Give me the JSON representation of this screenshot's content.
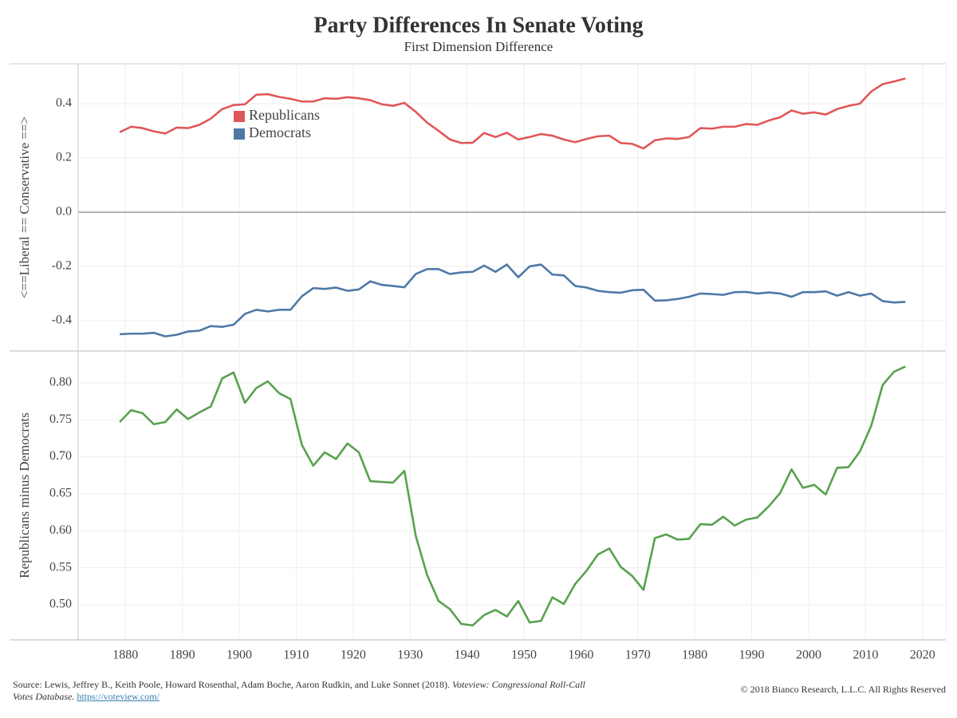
{
  "title": "Party Differences In Senate Voting",
  "subtitle": "First Dimension Difference",
  "chart_data": [
    {
      "type": "line",
      "ylabel": "<==Liberal == Conservative ==>",
      "x": [
        1879,
        1881,
        1883,
        1885,
        1887,
        1889,
        1891,
        1893,
        1895,
        1897,
        1899,
        1901,
        1903,
        1905,
        1907,
        1909,
        1911,
        1913,
        1915,
        1917,
        1919,
        1921,
        1923,
        1925,
        1927,
        1929,
        1931,
        1933,
        1935,
        1937,
        1939,
        1941,
        1943,
        1945,
        1947,
        1949,
        1951,
        1953,
        1955,
        1957,
        1959,
        1961,
        1963,
        1965,
        1967,
        1969,
        1971,
        1973,
        1975,
        1977,
        1979,
        1981,
        1983,
        1985,
        1987,
        1989,
        1991,
        1993,
        1995,
        1997,
        1999,
        2001,
        2003,
        2005,
        2007,
        2009,
        2011,
        2013,
        2015,
        2017
      ],
      "series": [
        {
          "name": "Republicans",
          "color": "#e05759",
          "values": [
            0.295,
            0.315,
            0.31,
            0.298,
            0.29,
            0.312,
            0.31,
            0.322,
            0.345,
            0.38,
            0.395,
            0.398,
            0.433,
            0.435,
            0.425,
            0.418,
            0.408,
            0.408,
            0.42,
            0.418,
            0.424,
            0.42,
            0.413,
            0.398,
            0.392,
            0.403,
            0.37,
            0.33,
            0.3,
            0.268,
            0.255,
            0.256,
            0.292,
            0.277,
            0.293,
            0.268,
            0.277,
            0.288,
            0.282,
            0.268,
            0.258,
            0.27,
            0.28,
            0.282,
            0.255,
            0.252,
            0.235,
            0.265,
            0.272,
            0.27,
            0.277,
            0.31,
            0.308,
            0.315,
            0.315,
            0.325,
            0.322,
            0.338,
            0.35,
            0.375,
            0.363,
            0.368,
            0.36,
            0.38,
            0.392,
            0.4,
            0.445,
            0.472,
            0.482,
            0.493
          ]
        },
        {
          "name": "Democrats",
          "color": "#4e79a7",
          "values": [
            -0.45,
            -0.448,
            -0.448,
            -0.445,
            -0.458,
            -0.452,
            -0.44,
            -0.437,
            -0.42,
            -0.423,
            -0.415,
            -0.375,
            -0.36,
            -0.366,
            -0.36,
            -0.36,
            -0.31,
            -0.28,
            -0.283,
            -0.278,
            -0.29,
            -0.285,
            -0.255,
            -0.268,
            -0.272,
            -0.277,
            -0.228,
            -0.21,
            -0.21,
            -0.228,
            -0.222,
            -0.22,
            -0.197,
            -0.22,
            -0.193,
            -0.24,
            -0.2,
            -0.193,
            -0.23,
            -0.233,
            -0.272,
            -0.278,
            -0.29,
            -0.295,
            -0.297,
            -0.288,
            -0.286,
            -0.326,
            -0.325,
            -0.32,
            -0.312,
            -0.3,
            -0.302,
            -0.305,
            -0.295,
            -0.294,
            -0.3,
            -0.296,
            -0.3,
            -0.312,
            -0.295,
            -0.295,
            -0.292,
            -0.308,
            -0.295,
            -0.308,
            -0.3,
            -0.328,
            -0.333,
            -0.331
          ]
        }
      ],
      "xlim": [
        1871.7,
        2024.1
      ],
      "ylim": [
        -0.512,
        0.547
      ],
      "yticks": [
        -0.4,
        -0.2,
        {
          "value": 0,
          "label": "0.0"
        },
        0.2,
        0.4
      ],
      "grid": true,
      "legend": "upper-left"
    },
    {
      "type": "line",
      "ylabel": "Republicans minus Democrats",
      "x": [
        1879,
        1881,
        1883,
        1885,
        1887,
        1889,
        1891,
        1893,
        1895,
        1897,
        1899,
        1901,
        1903,
        1905,
        1907,
        1909,
        1911,
        1913,
        1915,
        1917,
        1919,
        1921,
        1923,
        1925,
        1927,
        1929,
        1931,
        1933,
        1935,
        1937,
        1939,
        1941,
        1943,
        1945,
        1947,
        1949,
        1951,
        1953,
        1955,
        1957,
        1959,
        1961,
        1963,
        1965,
        1967,
        1969,
        1971,
        1973,
        1975,
        1977,
        1979,
        1981,
        1983,
        1985,
        1987,
        1989,
        1991,
        1993,
        1995,
        1997,
        1999,
        2001,
        2003,
        2005,
        2007,
        2009,
        2011,
        2013,
        2015,
        2017
      ],
      "series": [
        {
          "color": "#59a14f",
          "values": [
            0.747,
            0.763,
            0.759,
            0.744,
            0.747,
            0.764,
            0.751,
            0.76,
            0.768,
            0.806,
            0.814,
            0.773,
            0.793,
            0.802,
            0.786,
            0.778,
            0.716,
            0.688,
            0.706,
            0.697,
            0.718,
            0.706,
            0.667,
            0.666,
            0.665,
            0.681,
            0.593,
            0.54,
            0.505,
            0.494,
            0.474,
            0.472,
            0.486,
            0.493,
            0.484,
            0.505,
            0.476,
            0.478,
            0.51,
            0.501,
            0.528,
            0.546,
            0.568,
            0.576,
            0.551,
            0.539,
            0.52,
            0.59,
            0.595,
            0.588,
            0.589,
            0.609,
            0.608,
            0.619,
            0.607,
            0.615,
            0.618,
            0.633,
            0.651,
            0.683,
            0.658,
            0.662,
            0.649,
            0.685,
            0.686,
            0.707,
            0.742,
            0.797,
            0.815,
            0.822
          ]
        }
      ],
      "xlim": [
        1871.7,
        2024.1
      ],
      "ylim": [
        0.4525,
        0.843
      ],
      "xticks": [
        1880,
        1890,
        1900,
        1910,
        1920,
        1930,
        1940,
        1950,
        1960,
        1970,
        1980,
        1990,
        2000,
        2010,
        2020
      ],
      "yticks": [
        {
          "value": 0.5,
          "label": "0.50"
        },
        0.55,
        {
          "value": 0.6,
          "label": "0.60"
        },
        0.65,
        {
          "value": 0.7,
          "label": "0.70"
        },
        0.75,
        {
          "value": 0.8,
          "label": "0.80"
        }
      ],
      "grid": true
    }
  ],
  "footer": {
    "source": "Source: Lewis, Jeffrey B., Keith Poole, Howard Rosenthal, Adam Boche, Aaron Rudkin, and Luke Sonnet (2018). ",
    "source_title": "Voteview: Congressional Roll-Call Votes Database.",
    "source_link": "https://voteview.com/",
    "copyright": "© 2018 Bianco Research, L.L.C. All Rights Reserved"
  }
}
